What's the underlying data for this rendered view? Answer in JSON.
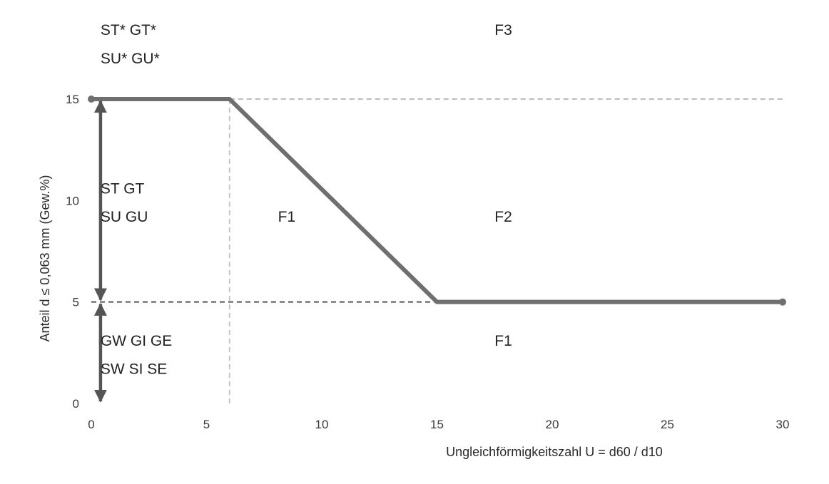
{
  "chart_data": {
    "type": "line",
    "xlabel": "Ungleichförmigkeitszahl U = d60 / d10",
    "ylabel": "Anteil d ≤ 0,063 mm (Gew.%)",
    "xlim": [
      0,
      30
    ],
    "ylim": [
      0,
      15
    ],
    "x_ticks": [
      0,
      5,
      10,
      15,
      20,
      25,
      30
    ],
    "y_ticks": [
      0,
      5,
      10,
      15
    ],
    "grid": false,
    "legend": "none",
    "series": [
      {
        "style": "solid",
        "color": "#6f6f6f",
        "points": [
          [
            0,
            15
          ],
          [
            6,
            15
          ],
          [
            15,
            5
          ],
          [
            30,
            5
          ]
        ]
      }
    ],
    "reference_lines": [
      {
        "style": "dashed",
        "color": "#bcbcbc",
        "points": [
          [
            6,
            15
          ],
          [
            30,
            15
          ]
        ]
      },
      {
        "style": "dashed",
        "color": "#555555",
        "points": [
          [
            0,
            5
          ],
          [
            15,
            5
          ]
        ]
      },
      {
        "style": "dashed",
        "color": "#c4c4c4",
        "points": [
          [
            6,
            0
          ],
          [
            6,
            15
          ]
        ]
      }
    ],
    "arrows": [
      {
        "from": [
          0.4,
          15
        ],
        "to": [
          0.4,
          5
        ]
      },
      {
        "from": [
          0.4,
          5
        ],
        "to": [
          0.4,
          0
        ]
      }
    ],
    "annotations": [
      {
        "text": "ST* GT*",
        "x": 0.4,
        "y": 18.4
      },
      {
        "text": "SU* GU*",
        "x": 0.4,
        "y": 17.0
      },
      {
        "text": "F3",
        "x": 17.5,
        "y": 18.4
      },
      {
        "text": "ST GT",
        "x": 0.4,
        "y": 10.6
      },
      {
        "text": "SU GU",
        "x": 0.4,
        "y": 9.2
      },
      {
        "text": "F1",
        "x": 8.1,
        "y": 9.2
      },
      {
        "text": "F2",
        "x": 17.5,
        "y": 9.2
      },
      {
        "text": "GW GI GE",
        "x": 0.4,
        "y": 3.1
      },
      {
        "text": "SW SI SE",
        "x": 0.4,
        "y": 1.7
      },
      {
        "text": "F1",
        "x": 17.5,
        "y": 3.1
      }
    ]
  }
}
